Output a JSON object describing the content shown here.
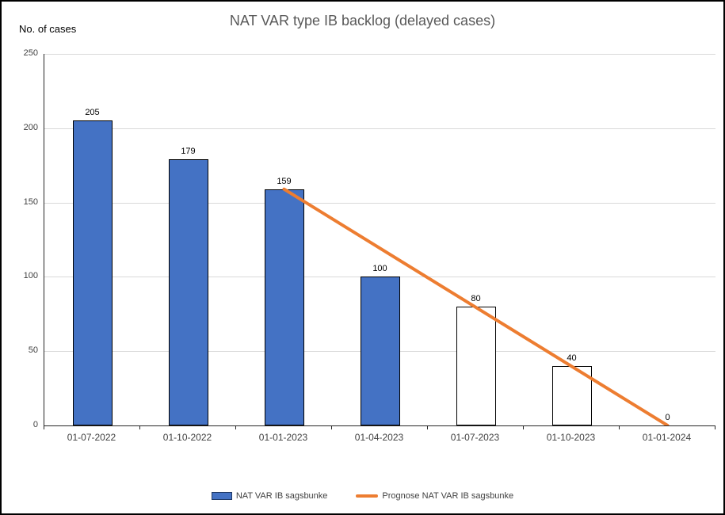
{
  "chart_data": {
    "type": "bar",
    "subtype": "bar-with-line-combo",
    "title": "NAT VAR type IB backlog (delayed cases)",
    "y_axis_title": "No. of cases",
    "xlabel": "",
    "ylabel": "No. of cases",
    "categories": [
      "01-07-2022",
      "01-10-2022",
      "01-01-2023",
      "01-04-2023",
      "01-07-2023",
      "01-10-2023",
      "01-01-2024"
    ],
    "series": [
      {
        "name": "NAT VAR IB sagsbunke",
        "type": "bar",
        "values": [
          205,
          179,
          159,
          100,
          80,
          40,
          0
        ],
        "filled": [
          true,
          true,
          true,
          true,
          false,
          false,
          false
        ]
      },
      {
        "name": "Prognose NAT VAR IB sagsbunke",
        "type": "line",
        "points": [
          {
            "category": "01-01-2023",
            "value": 159
          },
          {
            "category": "01-01-2024",
            "value": 0
          }
        ]
      }
    ],
    "data_labels": [
      205,
      179,
      159,
      100,
      80,
      40,
      0
    ],
    "ylim": [
      0,
      250
    ],
    "y_ticks": [
      0,
      50,
      100,
      150,
      200,
      250
    ],
    "grid": "horizontal",
    "legend_position": "bottom"
  },
  "colors": {
    "bar_fill": "#4472C4",
    "bar_fill_empty": "#FFFFFF",
    "bar_border": "#000000",
    "line": "#ED7D31",
    "gridline": "#D9D9D9",
    "axis": "#262626",
    "tick_label": "#404040",
    "data_label": "#000000",
    "title": "#595959"
  }
}
